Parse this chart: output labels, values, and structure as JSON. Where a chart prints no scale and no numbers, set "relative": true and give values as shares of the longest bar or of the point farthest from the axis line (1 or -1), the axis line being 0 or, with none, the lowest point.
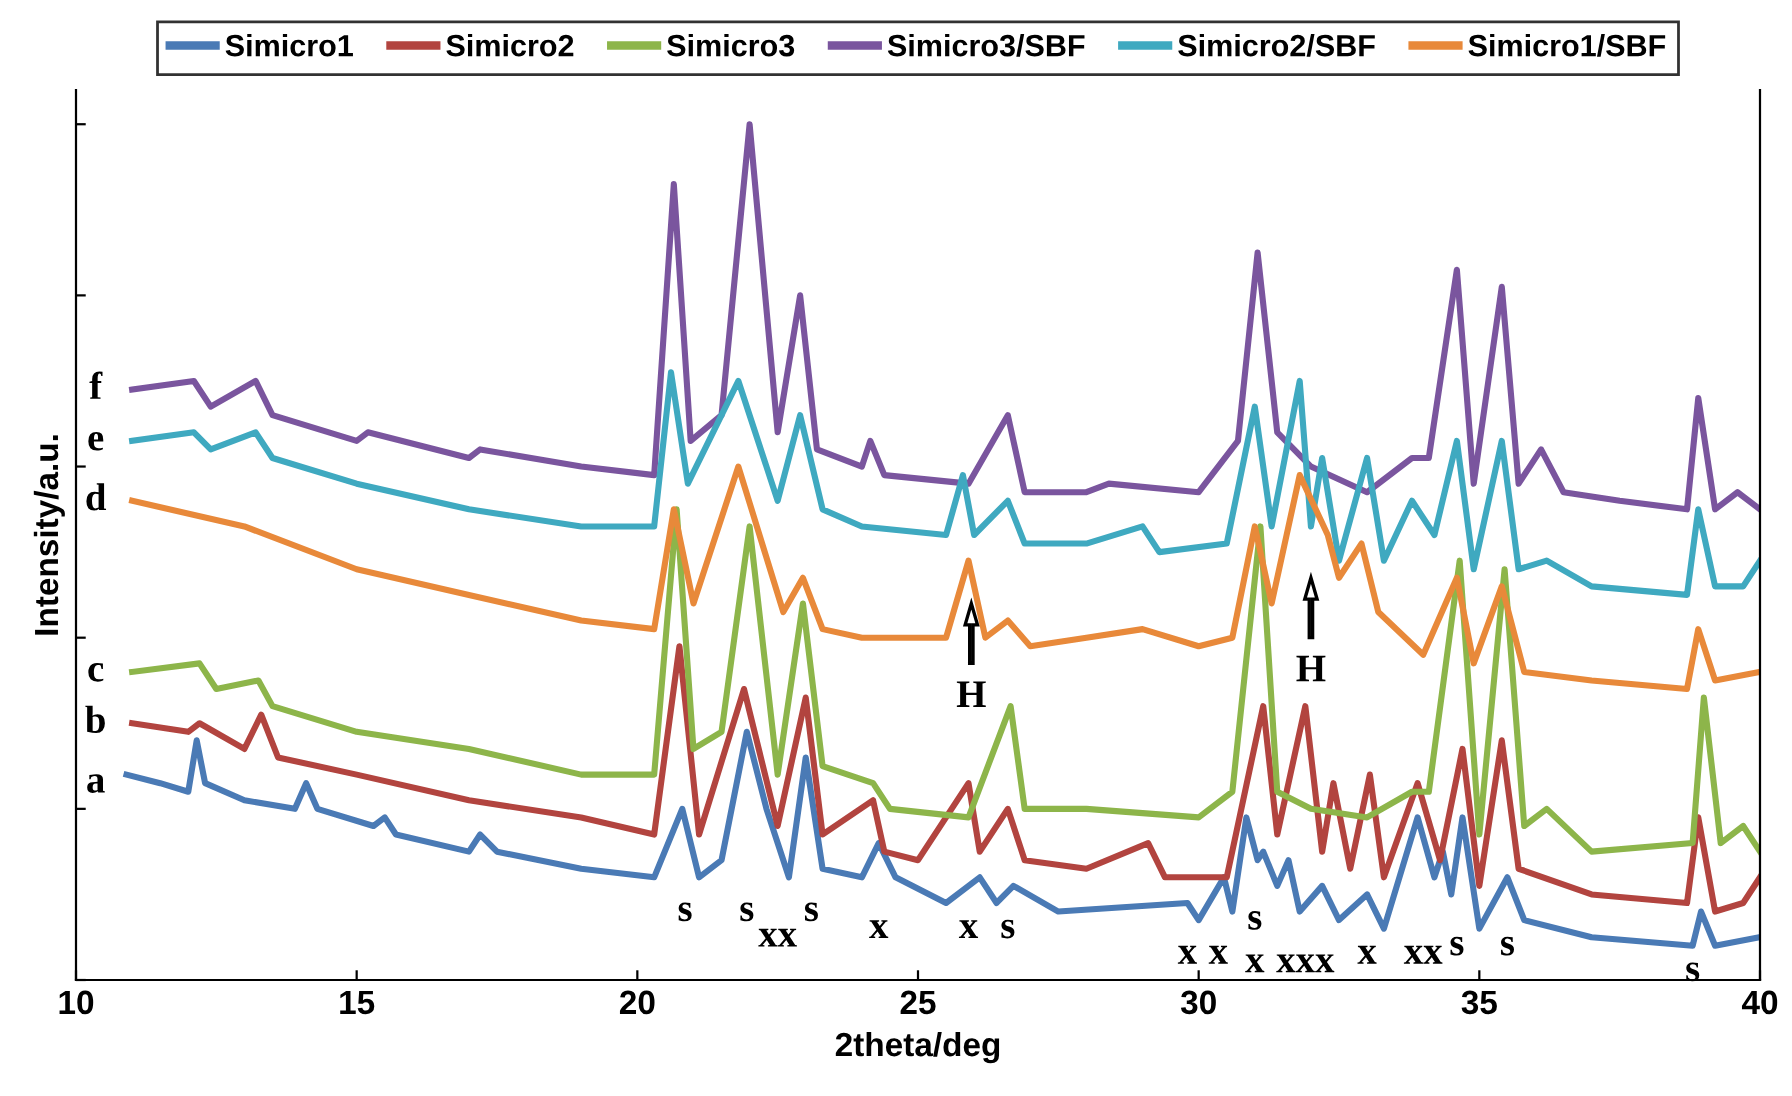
{
  "chart_data": {
    "type": "line",
    "relative": true,
    "xlabel": "2theta/deg",
    "ylabel": "Intensity/a.u.",
    "xlim": [
      10,
      40
    ],
    "xticks": [
      10,
      15,
      20,
      25,
      30,
      35,
      40
    ],
    "legend": "top",
    "grid": false,
    "marker": "none",
    "line_style": "solid",
    "series": [
      {
        "name": "Simicro1",
        "color": "#4a7ab5",
        "x": [
          10.9,
          11.5,
          12.0,
          12.15,
          12.3,
          13,
          13.9,
          14.1,
          14.3,
          15.3,
          15.5,
          15.7,
          17,
          17.2,
          17.5,
          19,
          20.3,
          20.8,
          21.1,
          21.5,
          21.95,
          22.3,
          22.5,
          22.7,
          23.0,
          23.3,
          24.0,
          24.3,
          24.6,
          25.5,
          26.1,
          26.4,
          26.7,
          27.5,
          29.8,
          30.0,
          30.45,
          30.6,
          30.85,
          31.05,
          31.15,
          31.4,
          31.6,
          31.8,
          32.2,
          32.5,
          33.0,
          33.3,
          33.9,
          34.2,
          34.35,
          34.5,
          34.7,
          35.0,
          35.5,
          35.8,
          37,
          38.8,
          38.95,
          39.2,
          40
        ],
        "values": [
          0.24,
          0.23,
          0.22,
          0.28,
          0.23,
          0.21,
          0.2,
          0.23,
          0.2,
          0.18,
          0.19,
          0.17,
          0.15,
          0.17,
          0.15,
          0.13,
          0.12,
          0.2,
          0.12,
          0.14,
          0.29,
          0.2,
          0.16,
          0.12,
          0.26,
          0.13,
          0.12,
          0.16,
          0.12,
          0.09,
          0.12,
          0.09,
          0.11,
          0.08,
          0.09,
          0.07,
          0.12,
          0.08,
          0.19,
          0.14,
          0.15,
          0.11,
          0.14,
          0.08,
          0.11,
          0.07,
          0.1,
          0.06,
          0.19,
          0.12,
          0.15,
          0.1,
          0.19,
          0.06,
          0.12,
          0.07,
          0.05,
          0.04,
          0.08,
          0.04,
          0.05
        ]
      },
      {
        "name": "Simicro2",
        "color": "#b2443f",
        "x": [
          11,
          12,
          12.2,
          13,
          13.3,
          13.6,
          15,
          17,
          19,
          20.3,
          20.75,
          21.1,
          21.9,
          22.5,
          23.0,
          23.3,
          24.2,
          24.4,
          25,
          25.9,
          26.1,
          26.6,
          26.9,
          28,
          29.1,
          29.4,
          30.5,
          31.15,
          31.4,
          31.9,
          32.2,
          32.4,
          32.7,
          33.05,
          33.3,
          33.9,
          34.3,
          34.7,
          35.0,
          35.4,
          35.7,
          37,
          38.7,
          38.9,
          39.2,
          39.7,
          40
        ],
        "values": [
          0.3,
          0.29,
          0.3,
          0.27,
          0.31,
          0.26,
          0.24,
          0.21,
          0.19,
          0.17,
          0.39,
          0.17,
          0.34,
          0.18,
          0.33,
          0.17,
          0.21,
          0.15,
          0.14,
          0.23,
          0.15,
          0.2,
          0.14,
          0.13,
          0.16,
          0.12,
          0.12,
          0.32,
          0.17,
          0.32,
          0.15,
          0.23,
          0.13,
          0.24,
          0.12,
          0.23,
          0.14,
          0.27,
          0.11,
          0.28,
          0.13,
          0.1,
          0.09,
          0.19,
          0.08,
          0.09,
          0.12
        ]
      },
      {
        "name": "Simicro3",
        "color": "#8db54a",
        "x": [
          11,
          12.2,
          12.5,
          13.25,
          13.5,
          15,
          17,
          19,
          20.3,
          20.7,
          21.0,
          21.5,
          22.0,
          22.5,
          22.95,
          23.3,
          24.2,
          24.5,
          25.9,
          26.65,
          26.9,
          28,
          30,
          30.6,
          31.1,
          31.4,
          32,
          33,
          33.8,
          34.1,
          34.65,
          35.0,
          35.45,
          35.8,
          36.2,
          37,
          38.8,
          39.0,
          39.3,
          39.7,
          40
        ],
        "values": [
          0.36,
          0.37,
          0.34,
          0.35,
          0.32,
          0.29,
          0.27,
          0.24,
          0.24,
          0.55,
          0.27,
          0.29,
          0.53,
          0.24,
          0.44,
          0.25,
          0.23,
          0.2,
          0.19,
          0.32,
          0.2,
          0.2,
          0.19,
          0.22,
          0.53,
          0.22,
          0.2,
          0.19,
          0.22,
          0.22,
          0.49,
          0.17,
          0.48,
          0.18,
          0.2,
          0.15,
          0.16,
          0.33,
          0.16,
          0.18,
          0.15
        ]
      },
      {
        "name": "Simicro3/SBF",
        "color": "#7a559e",
        "x": [
          11,
          12.1,
          12.4,
          13.2,
          13.5,
          15,
          15.2,
          17,
          17.2,
          19,
          20.3,
          20.65,
          20.95,
          21.5,
          22.0,
          22.5,
          22.9,
          23.2,
          24.0,
          24.15,
          24.4,
          25.9,
          26.6,
          26.9,
          28,
          28.4,
          30,
          30.7,
          31.05,
          31.4,
          32,
          33,
          33.8,
          34.1,
          34.6,
          34.9,
          35.4,
          35.7,
          36.1,
          36.5,
          37.5,
          38.7,
          38.9,
          39.2,
          39.6,
          40
        ],
        "values": [
          0.69,
          0.7,
          0.67,
          0.7,
          0.66,
          0.63,
          0.64,
          0.61,
          0.62,
          0.6,
          0.59,
          0.93,
          0.63,
          0.66,
          1.0,
          0.64,
          0.8,
          0.62,
          0.6,
          0.63,
          0.59,
          0.58,
          0.66,
          0.57,
          0.57,
          0.58,
          0.57,
          0.63,
          0.85,
          0.64,
          0.6,
          0.57,
          0.61,
          0.61,
          0.83,
          0.58,
          0.81,
          0.58,
          0.62,
          0.57,
          0.56,
          0.55,
          0.68,
          0.55,
          0.57,
          0.55
        ]
      },
      {
        "name": "Simicro2/SBF",
        "color": "#3fa9c0",
        "x": [
          11,
          12.1,
          12.4,
          13.2,
          13.5,
          15,
          17,
          19,
          20.3,
          20.6,
          20.9,
          21.8,
          22.5,
          22.9,
          23.3,
          24,
          25.5,
          25.8,
          26.0,
          26.6,
          26.9,
          28,
          29,
          29.3,
          30.5,
          31.0,
          31.3,
          31.8,
          32.0,
          32.2,
          32.5,
          33.0,
          33.3,
          33.8,
          34.2,
          34.6,
          34.9,
          35.4,
          35.7,
          36.2,
          37,
          38.7,
          38.9,
          39.2,
          39.7,
          40
        ],
        "values": [
          0.63,
          0.64,
          0.62,
          0.64,
          0.61,
          0.58,
          0.55,
          0.53,
          0.53,
          0.71,
          0.58,
          0.7,
          0.56,
          0.66,
          0.55,
          0.53,
          0.52,
          0.59,
          0.52,
          0.56,
          0.51,
          0.51,
          0.53,
          0.5,
          0.51,
          0.67,
          0.53,
          0.7,
          0.53,
          0.61,
          0.49,
          0.61,
          0.49,
          0.56,
          0.52,
          0.63,
          0.48,
          0.63,
          0.48,
          0.49,
          0.46,
          0.45,
          0.55,
          0.46,
          0.46,
          0.49
        ]
      },
      {
        "name": "Simicro1/SBF",
        "color": "#e8893a",
        "x": [
          11,
          13,
          15,
          17,
          19,
          20.3,
          20.65,
          21.0,
          21.8,
          22.6,
          22.95,
          23.3,
          24,
          25.5,
          25.9,
          26.2,
          26.6,
          27,
          28,
          29,
          30,
          30.6,
          31.0,
          31.3,
          31.8,
          32.3,
          32.5,
          32.9,
          33.2,
          34,
          34.6,
          34.9,
          35.4,
          35.8,
          37,
          38.7,
          38.9,
          39.2,
          40
        ],
        "values": [
          0.56,
          0.53,
          0.48,
          0.45,
          0.42,
          0.41,
          0.55,
          0.44,
          0.6,
          0.43,
          0.47,
          0.41,
          0.4,
          0.4,
          0.49,
          0.4,
          0.42,
          0.39,
          0.4,
          0.41,
          0.39,
          0.4,
          0.53,
          0.44,
          0.59,
          0.52,
          0.47,
          0.51,
          0.43,
          0.38,
          0.47,
          0.37,
          0.46,
          0.36,
          0.35,
          0.34,
          0.41,
          0.35,
          0.36
        ]
      }
    ],
    "annotations": [
      "f",
      "e",
      "d",
      "c",
      "b",
      "a",
      "s",
      "s",
      "xx",
      "s",
      "x",
      "x",
      "s",
      "x",
      "x",
      "s",
      "x",
      "xxx",
      "x",
      "xx",
      "s",
      "s",
      "s",
      "H",
      "H"
    ]
  }
}
